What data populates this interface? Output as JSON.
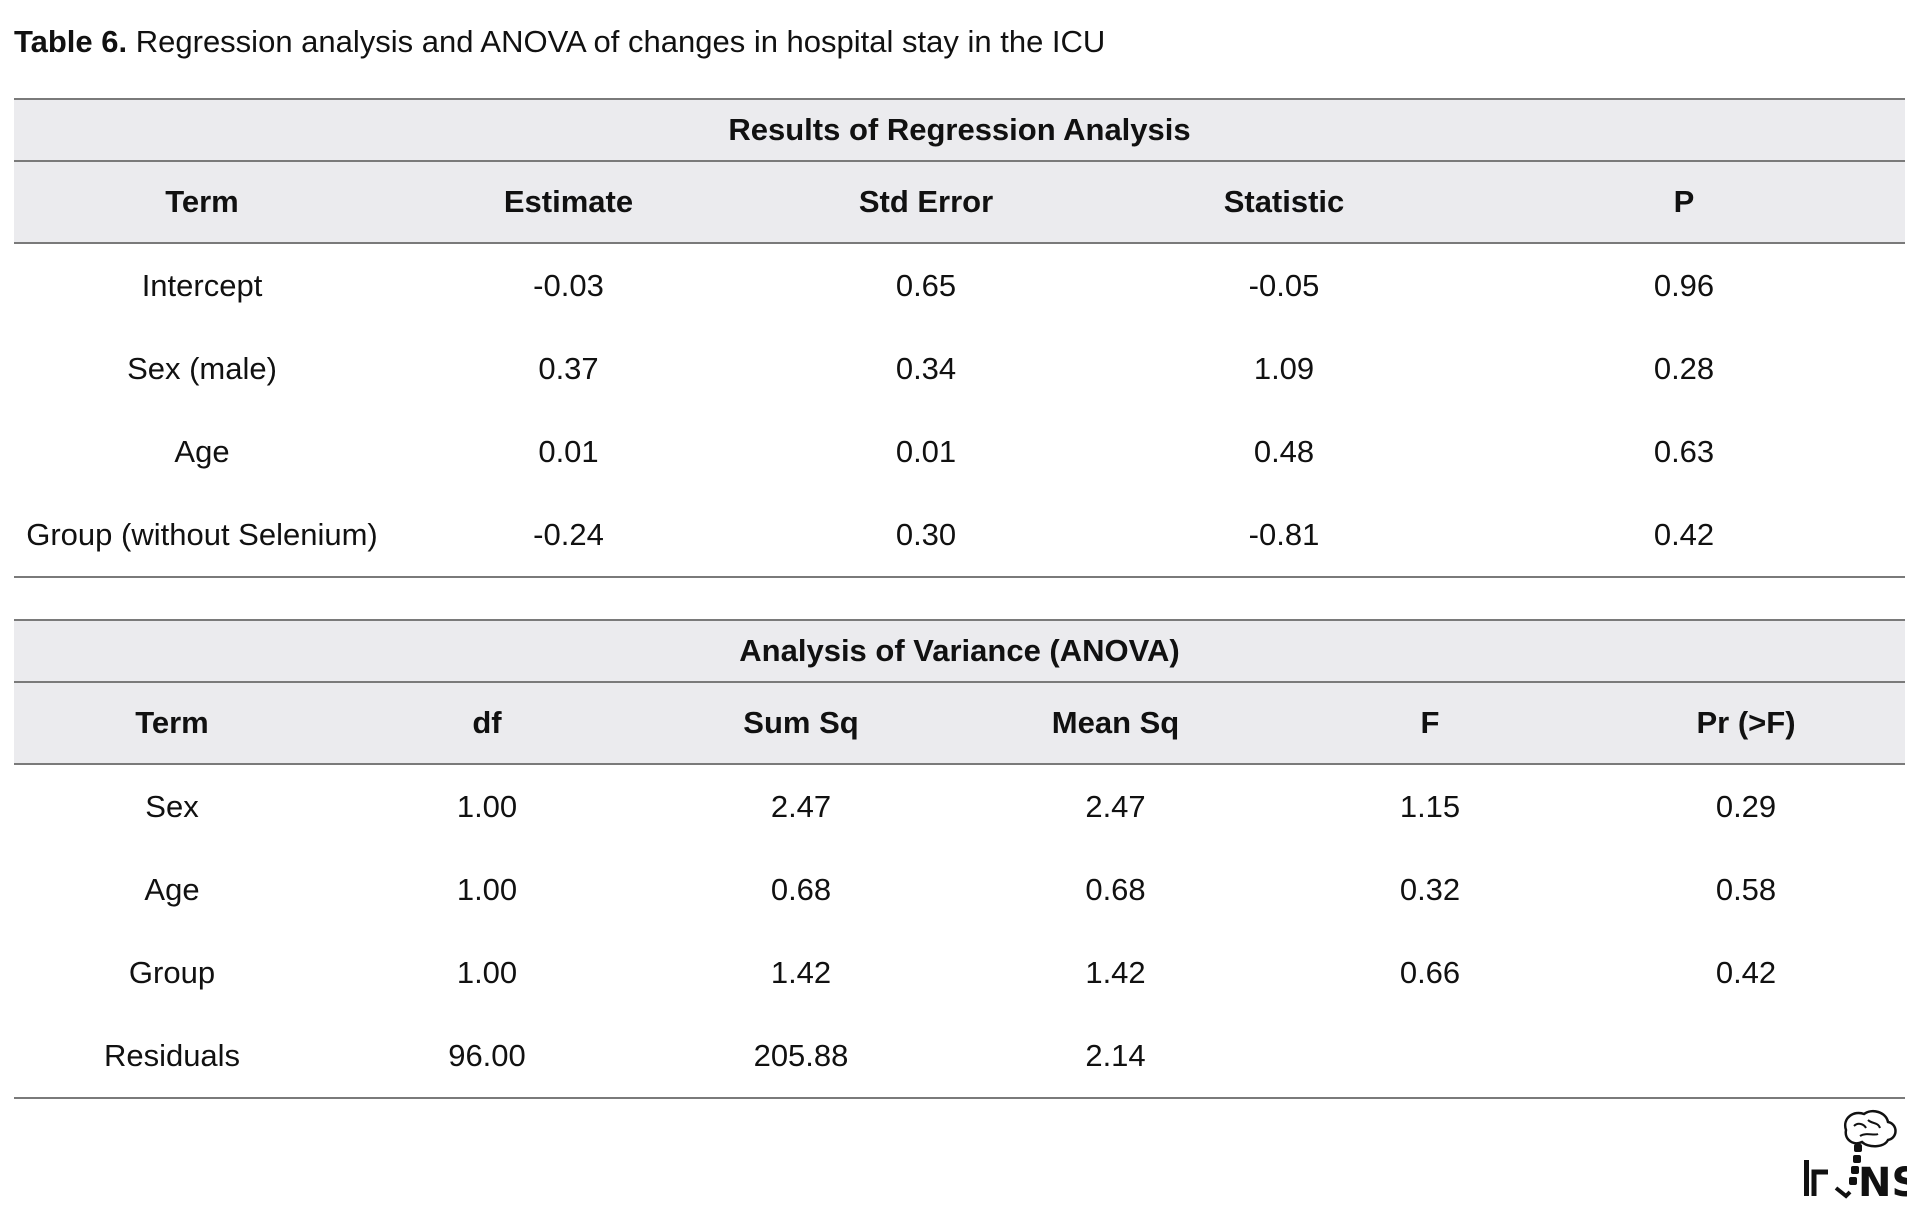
{
  "caption": {
    "label": "Table 6.",
    "text": " Regression analysis and ANOVA of changes in hospital stay in the ICU"
  },
  "regression": {
    "title": "Results of Regression Analysis",
    "headers": [
      "Term",
      "Estimate",
      "Std Error",
      "Statistic",
      "P"
    ],
    "rows": [
      [
        "Intercept",
        "-0.03",
        "0.65",
        "-0.05",
        "0.96"
      ],
      [
        "Sex (male)",
        "0.37",
        "0.34",
        "1.09",
        "0.28"
      ],
      [
        "Age",
        "0.01",
        "0.01",
        "0.48",
        "0.63"
      ],
      [
        "Group (without Selenium)",
        "-0.24",
        "0.30",
        "-0.81",
        "0.42"
      ]
    ]
  },
  "anova": {
    "title": "Analysis of Variance (ANOVA)",
    "headers": [
      "Term",
      "df",
      "Sum Sq",
      "Mean Sq",
      "F",
      "Pr (>F)"
    ],
    "rows": [
      [
        "Sex",
        "1.00",
        "2.47",
        "2.47",
        "1.15",
        "0.29"
      ],
      [
        "Age",
        "1.00",
        "0.68",
        "0.68",
        "0.32",
        "0.58"
      ],
      [
        "Group",
        "1.00",
        "1.42",
        "1.42",
        "0.66",
        "0.42"
      ],
      [
        "Residuals",
        "96.00",
        "205.88",
        "2.14",
        "",
        ""
      ]
    ]
  },
  "logo": {
    "text": "IrJNS",
    "icon": "brain-spine-icon"
  },
  "colors": {
    "header_bg": "#ebebee",
    "rule": "#7a7a7a",
    "text": "#111111"
  }
}
